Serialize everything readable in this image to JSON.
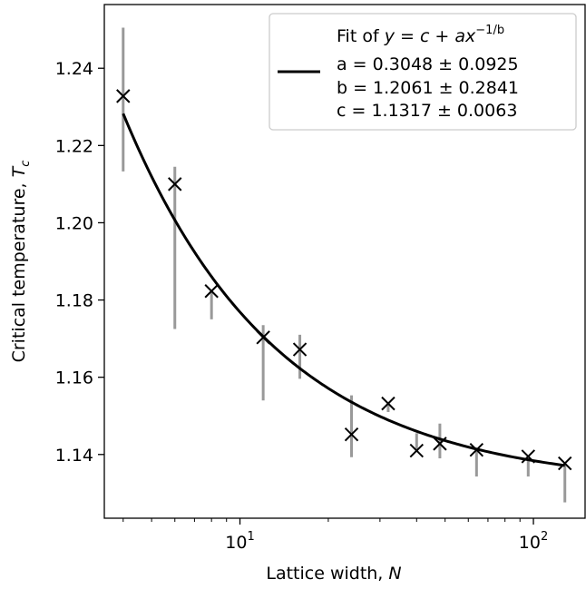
{
  "chart_data": {
    "type": "scatter",
    "x_scale": "log",
    "xlabel": "Lattice width,",
    "xlabel_symbol": "N",
    "ylabel": "Critical temperature,",
    "ylabel_symbol": "T",
    "ylabel_subscript": "c",
    "xlim": [
      3.45,
      150
    ],
    "ylim": [
      1.1235,
      1.2565
    ],
    "x_ticks": [
      {
        "value": 10,
        "base": "10",
        "exp": "1"
      },
      {
        "value": 100,
        "base": "10",
        "exp": "2"
      }
    ],
    "y_ticks": [
      {
        "value": 1.14,
        "label": "1.14"
      },
      {
        "value": 1.16,
        "label": "1.16"
      },
      {
        "value": 1.18,
        "label": "1.18"
      },
      {
        "value": 1.2,
        "label": "1.20"
      },
      {
        "value": 1.22,
        "label": "1.22"
      },
      {
        "value": 1.24,
        "label": "1.24"
      }
    ],
    "points": [
      {
        "x": 4,
        "y": 1.2328,
        "err_low": 1.2133,
        "err_high": 1.2505
      },
      {
        "x": 6,
        "y": 1.21,
        "err_low": 1.1725,
        "err_high": 1.2145
      },
      {
        "x": 8,
        "y": 1.1823,
        "err_low": 1.175,
        "err_high": 1.1823
      },
      {
        "x": 12,
        "y": 1.1703,
        "err_low": 1.154,
        "err_high": 1.1735
      },
      {
        "x": 16,
        "y": 1.1672,
        "err_low": 1.1596,
        "err_high": 1.171
      },
      {
        "x": 24,
        "y": 1.1452,
        "err_low": 1.1393,
        "err_high": 1.1553
      },
      {
        "x": 32,
        "y": 1.1532,
        "err_low": 1.151,
        "err_high": 1.1532
      },
      {
        "x": 40,
        "y": 1.141,
        "err_low": 1.141,
        "err_high": 1.1455
      },
      {
        "x": 48,
        "y": 1.1428,
        "err_low": 1.139,
        "err_high": 1.148
      },
      {
        "x": 64,
        "y": 1.1412,
        "err_low": 1.1343,
        "err_high": 1.1412
      },
      {
        "x": 96,
        "y": 1.1395,
        "err_low": 1.1343,
        "err_high": 1.1395
      },
      {
        "x": 128,
        "y": 1.1377,
        "err_low": 1.1276,
        "err_high": 1.1377
      }
    ],
    "fit": {
      "a": 0.3048,
      "b": 1.2061,
      "c": 1.1317,
      "x_range": [
        4,
        128
      ]
    },
    "legend": {
      "placement": "top-right",
      "entries": [
        "a = 0.3048 ± 0.0925",
        "b = 1.2061 ± 0.2841",
        "c = 1.1317 ± 0.0063"
      ],
      "title_prefix": "Fit of",
      "formula_y": "y",
      "formula_eq": " = ",
      "formula_c": "c",
      "formula_plus": " + ",
      "formula_ax": "ax",
      "formula_exp": "−1/b"
    },
    "colors": {
      "marker": "#000000",
      "errorbar": "#999999",
      "fit_line": "#000000",
      "legend_border": "#cccccc"
    },
    "grid": false
  }
}
